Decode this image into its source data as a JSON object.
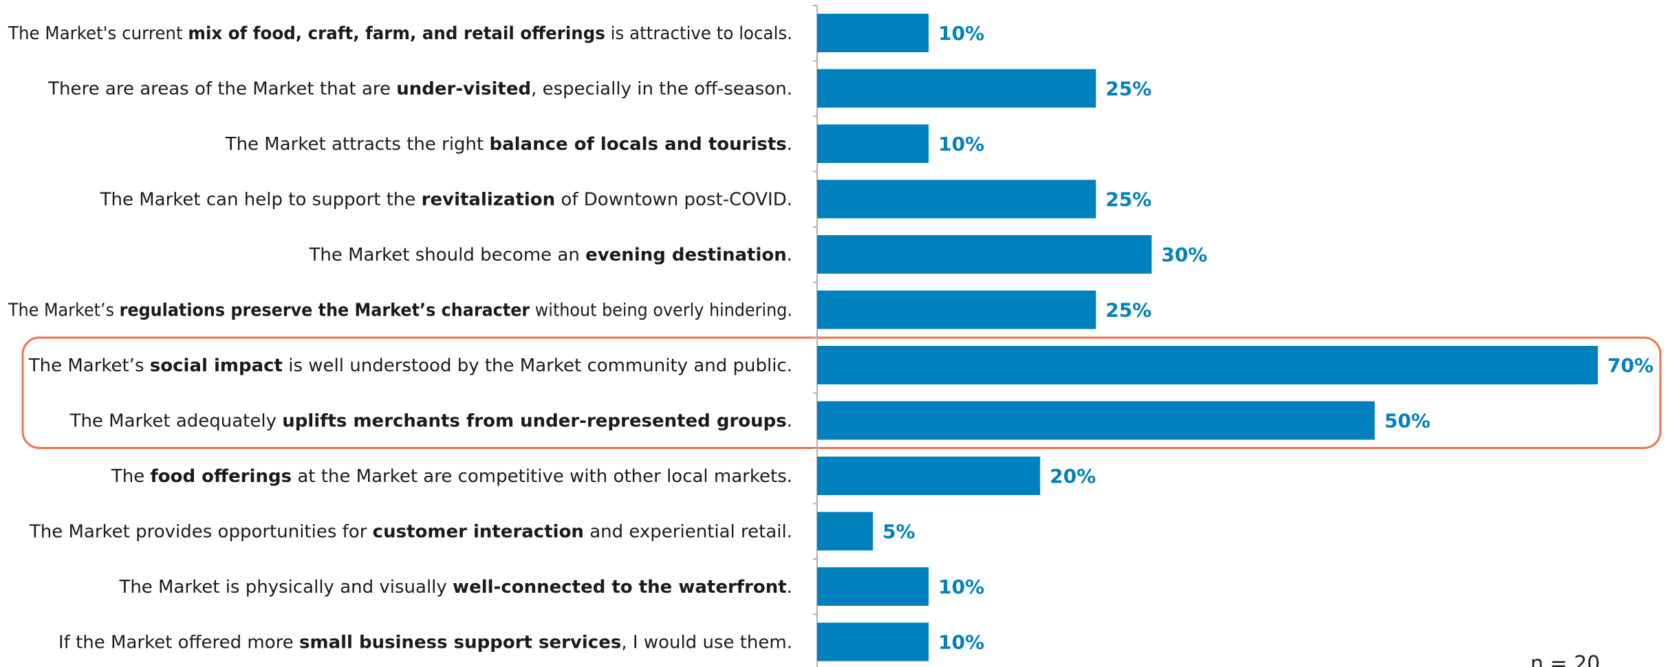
{
  "chart_data": {
    "type": "bar",
    "orientation": "horizontal",
    "unit": "%",
    "xlim": [
      0,
      70
    ],
    "grid": false,
    "title": "",
    "categories": [
      [
        {
          "t": "The Market's current ",
          "b": false
        },
        {
          "t": "mix of food, craft, farm, and retail offerings",
          "b": true
        },
        {
          "t": " is attractive to locals.",
          "b": false
        }
      ],
      [
        {
          "t": "There are areas of the Market that are ",
          "b": false
        },
        {
          "t": "under-visited",
          "b": true
        },
        {
          "t": ", especially in the off-season.",
          "b": false
        }
      ],
      [
        {
          "t": "The Market attracts the right ",
          "b": false
        },
        {
          "t": "balance of locals and tourists",
          "b": true
        },
        {
          "t": ".",
          "b": false
        }
      ],
      [
        {
          "t": "The Market can help to support the ",
          "b": false
        },
        {
          "t": "revitalization",
          "b": true
        },
        {
          "t": " of Downtown post-COVID.",
          "b": false
        }
      ],
      [
        {
          "t": "The Market should become an ",
          "b": false
        },
        {
          "t": "evening destination",
          "b": true
        },
        {
          "t": ".",
          "b": false
        }
      ],
      [
        {
          "t": "The Market’s ",
          "b": false
        },
        {
          "t": "regulations preserve the Market’s character",
          "b": true
        },
        {
          "t": " without being overly hindering.",
          "b": false
        }
      ],
      [
        {
          "t": "The Market’s ",
          "b": false
        },
        {
          "t": "social impact",
          "b": true
        },
        {
          "t": " is well understood by the Market community and public.",
          "b": false
        }
      ],
      [
        {
          "t": "The Market adequately ",
          "b": false
        },
        {
          "t": "uplifts merchants from under-represented groups",
          "b": true
        },
        {
          "t": ".",
          "b": false
        }
      ],
      [
        {
          "t": "The ",
          "b": false
        },
        {
          "t": "food offerings",
          "b": true
        },
        {
          "t": " at the Market are competitive with other local markets.",
          "b": false
        }
      ],
      [
        {
          "t": "The Market provides opportunities for ",
          "b": false
        },
        {
          "t": "customer interaction",
          "b": true
        },
        {
          "t": " and experiential retail.",
          "b": false
        }
      ],
      [
        {
          "t": "The Market is physically and visually ",
          "b": false
        },
        {
          "t": "well-connected to the waterfront",
          "b": true
        },
        {
          "t": ".",
          "b": false
        }
      ],
      [
        {
          "t": "If the Market offered more ",
          "b": false
        },
        {
          "t": "small business support services",
          "b": true
        },
        {
          "t": ", I would use them.",
          "b": false
        }
      ]
    ],
    "values": [
      10,
      25,
      10,
      25,
      30,
      25,
      70,
      50,
      20,
      5,
      10,
      10
    ],
    "value_labels": [
      "10%",
      "25%",
      "10%",
      "25%",
      "30%",
      "25%",
      "70%",
      "50%",
      "20%",
      "5%",
      "10%",
      "10%"
    ],
    "highlighted_rows": [
      6,
      7
    ],
    "colors": {
      "bar": "#0080BC",
      "value_label": "#0080BC",
      "highlight_box": "#F0704C",
      "axis": "#b0b0b0"
    }
  },
  "footnote": "n = 20"
}
